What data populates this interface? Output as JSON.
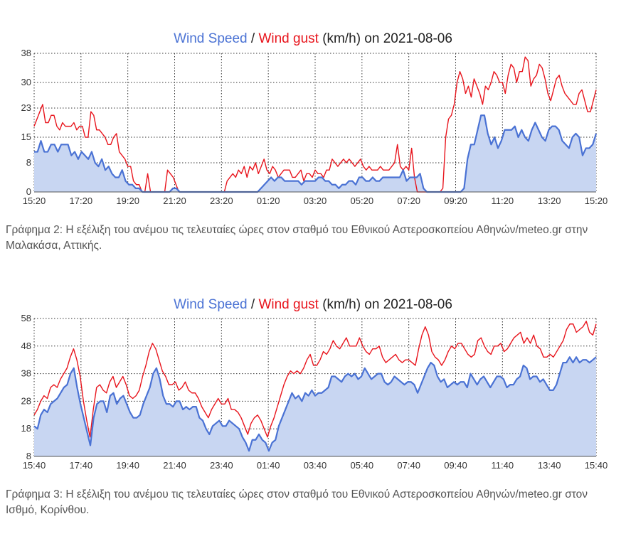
{
  "chart_data": [
    {
      "type": "area",
      "title_parts": {
        "speed": "Wind Speed",
        "sep": " / ",
        "gust": "Wind gust",
        "rest": " (km/h) on 2021-08-06"
      },
      "colors": {
        "speed_line": "#4a72d4",
        "speed_fill": "#c8d6f2",
        "gust_line": "#e8151d",
        "grid": "#333333"
      },
      "ylim": [
        0,
        38
      ],
      "yticks": [
        0,
        8,
        15,
        23,
        30,
        38
      ],
      "xticks": [
        "15:20",
        "17:20",
        "19:20",
        "21:20",
        "23:20",
        "01:20",
        "03:20",
        "05:20",
        "07:20",
        "09:20",
        "11:20",
        "13:20",
        "15:20"
      ],
      "series": [
        {
          "name": "Wind Speed",
          "values": [
            11,
            11,
            14,
            11,
            11,
            13,
            13,
            11,
            13,
            13,
            13,
            10,
            11,
            9,
            11,
            10,
            9,
            11,
            8,
            7,
            9,
            6,
            7,
            5,
            4,
            4,
            6,
            3,
            2,
            2,
            1,
            1,
            0,
            0,
            0,
            0,
            0,
            0,
            0,
            0,
            0,
            1,
            1,
            0,
            0,
            0,
            0,
            0,
            0,
            0,
            0,
            0,
            0,
            0,
            0,
            0,
            0,
            0,
            0,
            0,
            0,
            0,
            0,
            0,
            0,
            0,
            0,
            1,
            2,
            3,
            4,
            3,
            4,
            4,
            3,
            3,
            3,
            3,
            3,
            2,
            3,
            3,
            3,
            3,
            4,
            4,
            3,
            3,
            2,
            2,
            1,
            2,
            2,
            3,
            3,
            2,
            4,
            4,
            3,
            3,
            4,
            3,
            3,
            4,
            4,
            4,
            4,
            4,
            4,
            6,
            3,
            4,
            4,
            4,
            5,
            1,
            0,
            0,
            0,
            0,
            0,
            0,
            0,
            0,
            0,
            0,
            0,
            1,
            9,
            13,
            13,
            17,
            21,
            21,
            16,
            13,
            15,
            12,
            14,
            17,
            17,
            17,
            18,
            15,
            17,
            15,
            14,
            17,
            19,
            17,
            15,
            14,
            17,
            18,
            18,
            17,
            14,
            13,
            12,
            15,
            16,
            15,
            10,
            12,
            12,
            13,
            16
          ]
        },
        {
          "name": "Wind gust",
          "values": [
            18,
            20,
            22,
            24,
            19,
            19,
            21,
            21,
            18,
            17,
            19,
            18,
            18,
            18,
            19,
            17,
            18,
            18,
            15,
            15,
            22,
            21,
            17,
            17,
            16,
            15,
            13,
            13,
            15,
            16,
            11,
            10,
            9,
            7,
            7,
            3,
            2,
            2,
            0,
            0,
            5,
            0,
            0,
            0,
            0,
            0,
            0,
            6,
            5,
            4,
            2,
            0,
            0,
            0,
            0,
            0,
            0,
            0,
            0,
            0,
            0,
            0,
            0,
            0,
            0,
            0,
            0,
            0,
            3,
            4,
            5,
            4,
            6,
            5,
            7,
            4,
            7,
            6,
            8,
            5,
            7,
            9,
            6,
            5,
            7,
            6,
            4,
            5,
            6,
            6,
            6,
            4,
            4,
            5,
            6,
            3,
            5,
            5,
            4,
            6,
            5,
            5,
            4,
            6,
            6,
            9,
            8,
            7,
            8,
            9,
            8,
            9,
            8,
            7,
            8,
            9,
            7,
            6,
            7,
            6,
            6,
            6,
            7,
            6,
            6,
            6,
            7,
            8,
            13,
            7,
            6,
            7,
            6,
            12,
            4,
            0,
            0,
            0,
            0,
            0,
            0,
            0,
            0,
            0,
            1,
            15,
            20,
            21,
            24,
            30,
            33,
            31,
            27,
            29,
            26,
            31,
            29,
            27,
            24,
            29,
            28,
            30,
            33,
            32,
            30,
            30,
            27,
            32,
            35,
            34,
            30,
            33,
            33,
            37,
            36,
            29,
            31,
            32,
            35,
            34,
            31,
            27,
            25,
            28,
            31,
            32,
            29,
            27,
            26,
            25,
            24,
            24,
            27,
            28,
            25,
            22,
            22,
            25,
            28
          ]
        }
      ]
    },
    {
      "type": "area",
      "title_parts": {
        "speed": "Wind Speed",
        "sep": " / ",
        "gust": "Wind gust",
        "rest": " (km/h) on 2021-08-06"
      },
      "colors": {
        "speed_line": "#4a72d4",
        "speed_fill": "#c8d6f2",
        "gust_line": "#e8151d",
        "grid": "#333333"
      },
      "ylim": [
        8,
        58
      ],
      "yticks": [
        8,
        18,
        28,
        38,
        48,
        58
      ],
      "xticks": [
        "15:40",
        "17:40",
        "19:40",
        "21:40",
        "23:40",
        "01:40",
        "03:40",
        "05:40",
        "07:40",
        "09:40",
        "11:40",
        "13:40",
        "15:40"
      ],
      "series": [
        {
          "name": "Wind Speed",
          "values": [
            19,
            18,
            23,
            25,
            24,
            27,
            28,
            29,
            31,
            33,
            34,
            38,
            40,
            33,
            27,
            22,
            17,
            12,
            22,
            27,
            28,
            28,
            24,
            30,
            31,
            27,
            29,
            30,
            27,
            24,
            22,
            22,
            23,
            27,
            30,
            33,
            38,
            40,
            36,
            30,
            27,
            27,
            26,
            28,
            28,
            25,
            26,
            25,
            26,
            26,
            22,
            21,
            18,
            16,
            19,
            20,
            21,
            19,
            19,
            21,
            20,
            19,
            18,
            15,
            13,
            10,
            14,
            14,
            16,
            14,
            13,
            10,
            13,
            14,
            19,
            22,
            25,
            28,
            31,
            29,
            30,
            28,
            31,
            30,
            32,
            30,
            31,
            31,
            32,
            33,
            37,
            37,
            36,
            35,
            37,
            38,
            37,
            38,
            36,
            37,
            40,
            38,
            36,
            37,
            38,
            38,
            35,
            34,
            35,
            37,
            36,
            35,
            34,
            35,
            35,
            34,
            31,
            34,
            37,
            40,
            42,
            41,
            37,
            35,
            36,
            33,
            34,
            35,
            34,
            35,
            35,
            33,
            38,
            36,
            34,
            36,
            37,
            35,
            33,
            35,
            37,
            37,
            36,
            33,
            34,
            34,
            36,
            37,
            41,
            40,
            36,
            37,
            37,
            35,
            36,
            34,
            32,
            32,
            34,
            38,
            42,
            42,
            44,
            42,
            44,
            42,
            43,
            43,
            42,
            43,
            44
          ]
        },
        {
          "name": "Wind gust",
          "values": [
            23,
            25,
            28,
            30,
            29,
            33,
            34,
            33,
            36,
            38,
            40,
            44,
            47,
            43,
            37,
            28,
            21,
            15,
            25,
            33,
            34,
            32,
            31,
            35,
            37,
            33,
            35,
            37,
            34,
            30,
            29,
            30,
            32,
            37,
            41,
            46,
            49,
            47,
            43,
            39,
            37,
            34,
            34,
            35,
            32,
            33,
            35,
            32,
            31,
            31,
            29,
            26,
            24,
            22,
            25,
            27,
            29,
            27,
            27,
            29,
            25,
            25,
            24,
            22,
            19,
            16,
            20,
            22,
            23,
            21,
            18,
            15,
            19,
            22,
            26,
            30,
            34,
            37,
            39,
            38,
            39,
            38,
            40,
            43,
            45,
            41,
            41,
            43,
            46,
            45,
            47,
            50,
            48,
            47,
            49,
            51,
            48,
            48,
            48,
            51,
            48,
            46,
            45,
            47,
            47,
            48,
            44,
            42,
            43,
            44,
            45,
            43,
            42,
            43,
            43,
            42,
            41,
            47,
            52,
            55,
            52,
            46,
            44,
            43,
            41,
            43,
            46,
            48,
            47,
            49,
            49,
            47,
            45,
            44,
            45,
            50,
            51,
            48,
            46,
            45,
            48,
            48,
            49,
            46,
            47,
            49,
            51,
            52,
            53,
            49,
            51,
            49,
            52,
            48,
            47,
            44,
            44,
            45,
            44,
            46,
            48,
            50,
            54,
            56,
            56,
            53,
            54,
            55,
            57,
            53,
            52,
            56
          ]
        }
      ]
    }
  ],
  "captions": [
    "Γράφημα 2: Η εξέλιξη του ανέμου τις τελευταίες ώρες στον σταθμό του Εθνικού Αστεροσκοπείου Αθηνών/meteo.gr στην Μαλακάσα, Αττικής.",
    "Γράφημα 3: Η εξέλιξη του ανέμου τις τελευταίες ώρες στον σταθμό του Εθνικού Αστεροσκοπείου Αθηνών/meteo.gr στον Ισθμό, Κορίνθου."
  ]
}
